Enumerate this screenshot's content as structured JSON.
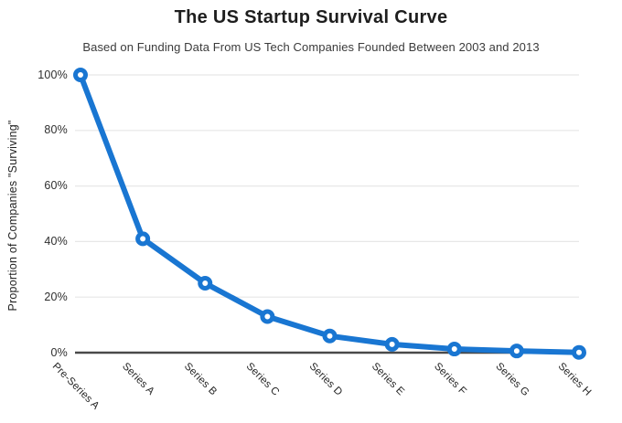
{
  "chart_data": {
    "type": "line",
    "title": "The US Startup Survival Curve",
    "subtitle": "Based on Funding Data From US Tech Companies Founded Between 2003 and 2013",
    "ylabel": "Proportion of Companies \"Surviving\"",
    "xlabel": "",
    "categories": [
      "Pre-Series A",
      "Series A",
      "Series B",
      "Series C",
      "Series D",
      "Series E",
      "Series F",
      "Series G",
      "Series H"
    ],
    "values": [
      100,
      41,
      25,
      13,
      6,
      3,
      1.3,
      0.6,
      0.1
    ],
    "yticks": [
      0,
      20,
      40,
      60,
      80,
      100
    ],
    "ytick_labels": [
      "0%",
      "20%",
      "40%",
      "60%",
      "80%",
      "100%"
    ],
    "ylim": [
      0,
      100
    ],
    "grid": true,
    "legend": "none",
    "colors": {
      "line": "#1976d2",
      "marker_fill": "#ffffff",
      "grid": "#e7e7e7",
      "axis": "#4a4a4a",
      "title_text": "#1e1e1e",
      "subtitle_text": "#3b3b3b",
      "tick_text": "#2e2e2e"
    }
  }
}
